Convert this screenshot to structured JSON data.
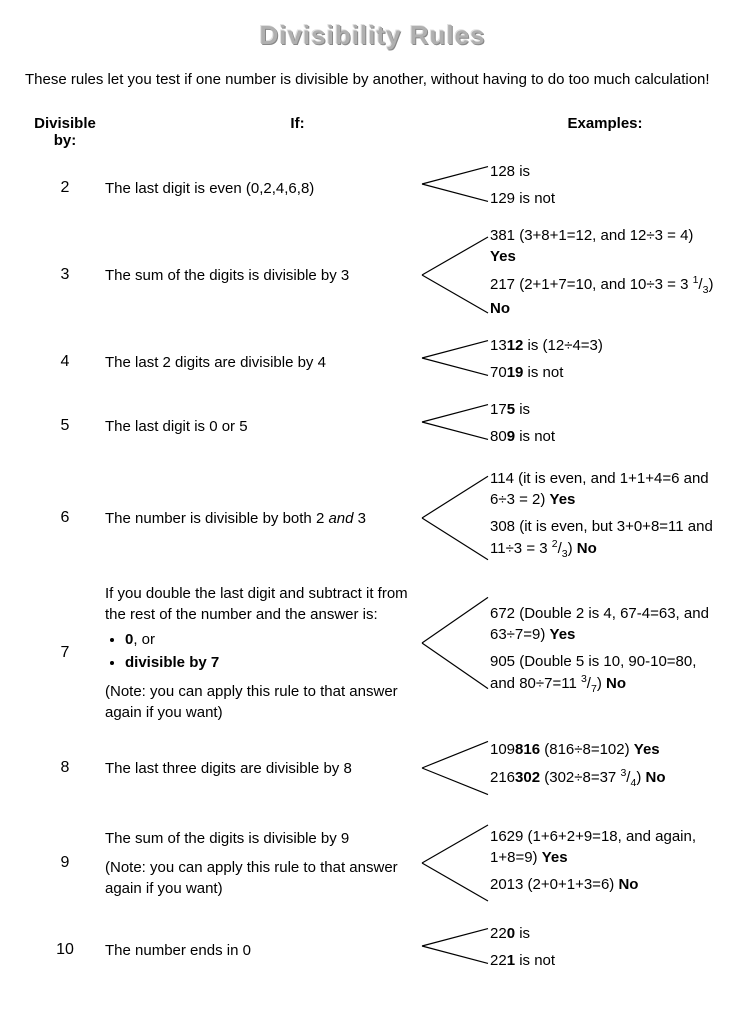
{
  "title": "Divisibility Rules",
  "intro": "These rules let you test if one number is divisible by another, without having to do too much calculation!",
  "headers": {
    "divisible": "Divisible by:",
    "if": "If:",
    "examples": "Examples:"
  },
  "rows": [
    {
      "divisor": "2",
      "rule_html": "The last digit is even (0,2,4,6,8)",
      "examples": [
        "128 is",
        "129 is not"
      ],
      "bracket_h": 46
    },
    {
      "divisor": "3",
      "rule_html": "The sum of the digits is divisible by 3",
      "examples": [
        "381 (3+8+1=12, and 12÷3 = 4) <b>Yes</b>",
        "217 (2+1+7=10, and 10÷3 = 3 <sup>1</sup>/<sub>3</sub>) <b>No</b>"
      ],
      "bracket_h": 100
    },
    {
      "divisor": "4",
      "rule_html": "The last 2 digits are divisible by 4",
      "examples": [
        "13<b>12</b> is (12÷4=3)",
        "70<b>19</b> is not"
      ],
      "bracket_h": 46
    },
    {
      "divisor": "5",
      "rule_html": "The last digit is 0 or 5",
      "examples": [
        "17<b>5</b> is",
        "80<b>9</b> is not"
      ],
      "bracket_h": 46
    },
    {
      "divisor": "6",
      "rule_html": "The number is divisible by both 2 <span class='italic'>and</span> 3",
      "examples": [
        "114 (it is even, and 1+1+4=6 and 6÷3 = 2) <b>Yes</b>",
        "308 (it is even, but 3+0+8=11 and 11÷3 = 3 <sup>2</sup>/<sub>3</sub>) <b>No</b>"
      ],
      "bracket_h": 110
    },
    {
      "divisor": "7",
      "rule_html": "If you double the last digit and subtract it from the rest of the number and the answer is:<ul><li><b>0</b>, or</li><li><b>divisible by 7</b></li></ul><div class='note'>(Note: you can apply this rule to that answer again if you want)</div>",
      "examples": [
        "672 (Double 2 is 4, 67-4=63, and 63÷7=9) <b>Yes</b>",
        "905 (Double 5 is 10, 90-10=80, and 80÷7=11 <sup>3</sup>/<sub>7</sub>) <b>No</b>"
      ],
      "bracket_h": 120
    },
    {
      "divisor": "8",
      "rule_html": "The last three digits are divisible by 8",
      "examples": [
        "109<b>816</b> (816÷8=102) <b>Yes</b>",
        "216<b>302</b> (302÷8=37 <sup>3</sup>/<sub>4</sub>) <b>No</b>"
      ],
      "bracket_h": 70
    },
    {
      "divisor": "9",
      "rule_html": "The sum of the digits is divisible by 9<div class='note'>(Note: you can apply this rule to that answer again if you want)</div>",
      "examples": [
        "1629 (1+6+2+9=18, and again, 1+8=9) <b>Yes</b>",
        "2013 (2+0+1+3=6) <b>No</b>"
      ],
      "bracket_h": 100
    },
    {
      "divisor": "10",
      "rule_html": "The number ends in 0",
      "examples": [
        "22<b>0</b> is",
        "22<b>1</b> is not"
      ],
      "bracket_h": 46
    }
  ],
  "style": {
    "font_family": "Comic Sans MS",
    "title_color": "#b0b0b0",
    "text_color": "#000000",
    "background": "#ffffff",
    "base_fontsize": 15,
    "title_fontsize": 26,
    "line_color": "#000000",
    "line_width": 1.2
  }
}
